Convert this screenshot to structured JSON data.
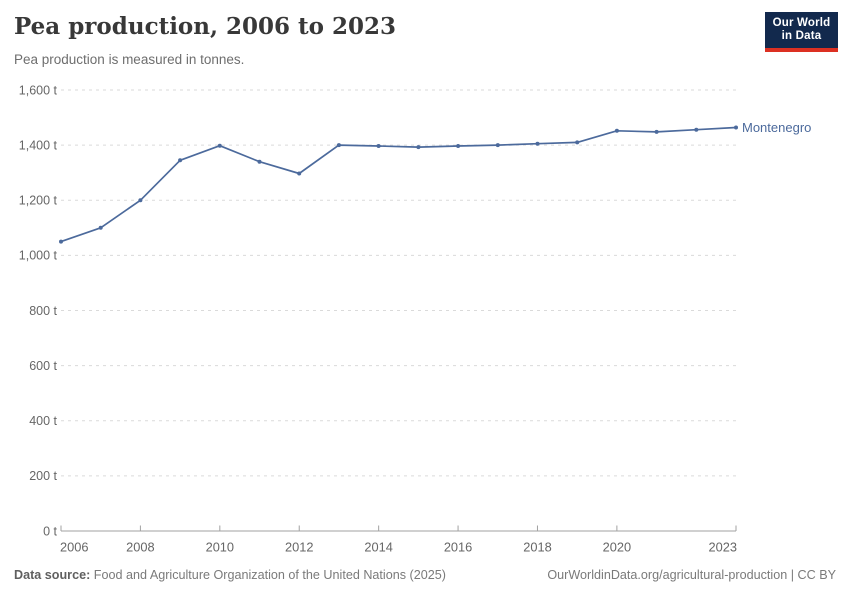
{
  "header": {
    "title": "Pea production, 2006 to 2023",
    "subtitle": "Pea production is measured in tonnes."
  },
  "logo": {
    "line1": "Our World",
    "line2": "in Data",
    "bg_color": "#12294d",
    "accent_color": "#dc3022"
  },
  "chart_data": {
    "type": "line",
    "title": "Pea production, 2006 to 2023",
    "unit": "t",
    "x": [
      2006,
      2007,
      2008,
      2009,
      2010,
      2011,
      2012,
      2013,
      2014,
      2015,
      2016,
      2017,
      2018,
      2019,
      2020,
      2021,
      2022,
      2023
    ],
    "series": [
      {
        "name": "Montenegro",
        "color": "#4c6a9c",
        "values": [
          1050,
          1100,
          1200,
          1345,
          1398,
          1340,
          1297,
          1400,
          1397,
          1393,
          1397,
          1400,
          1405,
          1410,
          1452,
          1448,
          1456,
          1464
        ]
      }
    ],
    "xlabel": "",
    "ylabel": "",
    "ylim": [
      0,
      1600
    ],
    "y_ticks": [
      0,
      200,
      400,
      600,
      800,
      1000,
      1200,
      1400,
      1600
    ],
    "y_tick_suffix": " t",
    "x_ticks": [
      2006,
      2008,
      2010,
      2012,
      2014,
      2016,
      2018,
      2020,
      2023
    ],
    "grid": "horizontal-dashed",
    "legend_position": "end-of-line-label",
    "colors": {
      "line": "#4c6a9c",
      "gridline": "#dadada",
      "axis": "#a1a1a1",
      "tick_label": "#666666"
    }
  },
  "footer": {
    "datasource_label": "Data source:",
    "datasource_text": "Food and Agriculture Organization of the United Nations (2025)",
    "license_text": "OurWorldinData.org/agricultural-production | CC BY"
  }
}
